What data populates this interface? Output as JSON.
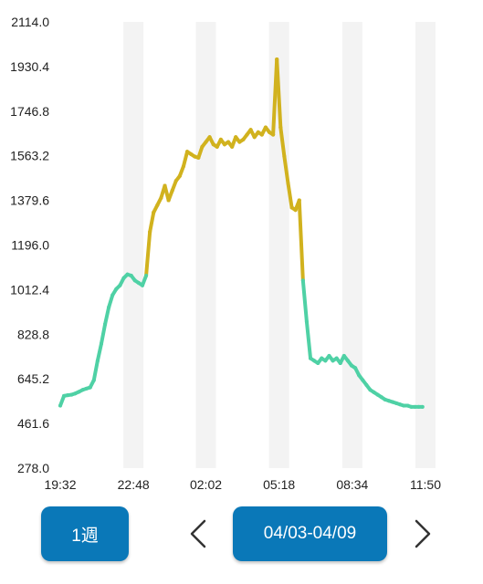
{
  "chart_data": {
    "type": "line",
    "title": "",
    "xlabel": "",
    "ylabel": "",
    "ylim": [
      278.0,
      2114.0
    ],
    "y_ticks": [
      "2114.0",
      "1930.4",
      "1746.8",
      "1563.2",
      "1379.6",
      "1196.0",
      "1012.4",
      "828.8",
      "645.2",
      "461.6",
      "278.0"
    ],
    "x_ticks": [
      "19:32",
      "22:48",
      "02:02",
      "05:18",
      "08:34",
      "11:50"
    ],
    "x_range": [
      "19:32",
      "11:50"
    ],
    "grid": "alternating vertical bands",
    "threshold": 1080,
    "colors": {
      "below": "#4fd1a5",
      "above": "#d1b21e",
      "band": "#f3f3f3"
    },
    "series": [
      {
        "x": [
          "19:32",
          "19:42",
          "19:52",
          "20:02",
          "20:12",
          "20:22",
          "20:32",
          "20:42",
          "20:52",
          "21:02",
          "21:12",
          "21:22",
          "21:32",
          "21:42",
          "21:52",
          "22:02",
          "22:12",
          "22:22",
          "22:32",
          "22:42",
          "22:52",
          "23:02",
          "23:12",
          "23:22",
          "23:32",
          "23:42",
          "23:52",
          "00:02",
          "00:12",
          "00:22",
          "00:32",
          "00:42",
          "00:52",
          "01:02",
          "01:12",
          "01:22",
          "01:32",
          "01:42",
          "01:52",
          "02:02",
          "02:12",
          "02:22",
          "02:32",
          "02:42",
          "02:52",
          "03:02",
          "03:12",
          "03:22",
          "03:32",
          "03:42",
          "03:52",
          "04:02",
          "04:12",
          "04:22",
          "04:32",
          "04:42",
          "04:52",
          "05:02",
          "05:12",
          "05:22",
          "05:32",
          "05:42",
          "05:52",
          "06:02",
          "06:12",
          "06:22",
          "06:32",
          "06:42",
          "06:52",
          "07:02",
          "07:12",
          "07:22",
          "07:32",
          "07:42",
          "07:52",
          "08:02",
          "08:12",
          "08:22",
          "08:32",
          "08:42",
          "08:52",
          "09:02",
          "09:12",
          "09:22",
          "09:32",
          "09:42",
          "09:52",
          "10:02",
          "10:12",
          "10:22",
          "10:32",
          "10:42",
          "10:52",
          "11:02",
          "11:12",
          "11:22",
          "11:32",
          "11:42"
        ],
        "values": [
          535,
          575,
          578,
          580,
          585,
          592,
          600,
          605,
          610,
          640,
          720,
          790,
          870,
          940,
          990,
          1015,
          1030,
          1060,
          1075,
          1070,
          1050,
          1040,
          1030,
          1070,
          1250,
          1330,
          1360,
          1390,
          1440,
          1380,
          1420,
          1460,
          1480,
          1520,
          1580,
          1570,
          1560,
          1555,
          1600,
          1620,
          1640,
          1610,
          1600,
          1630,
          1610,
          1620,
          1600,
          1640,
          1620,
          1630,
          1650,
          1670,
          1640,
          1660,
          1650,
          1680,
          1660,
          1650,
          1960,
          1680,
          1560,
          1450,
          1350,
          1340,
          1380,
          1050,
          880,
          730,
          720,
          710,
          730,
          720,
          740,
          720,
          730,
          710,
          740,
          720,
          700,
          690,
          660,
          640,
          620,
          600,
          590,
          580,
          570,
          560,
          555,
          550,
          545,
          540,
          535,
          535,
          530,
          530,
          530,
          530
        ]
      }
    ]
  },
  "controls": {
    "period_label": "1週",
    "prev_icon": "chevron-left-icon",
    "date_range": "04/03-04/09",
    "next_icon": "chevron-right-icon",
    "button_color": "#0a78b8"
  }
}
